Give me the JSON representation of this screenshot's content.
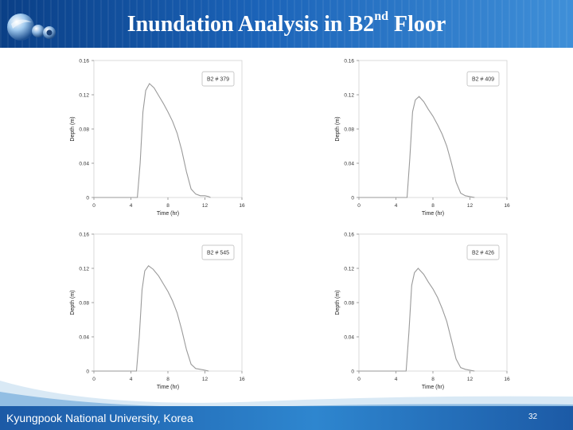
{
  "slide": {
    "title": "Inundation Analysis in B2",
    "title_sup": "nd",
    "title_suffix": " Floor",
    "footer_text": "Kyungpook National University, Korea",
    "page_number": "32",
    "colors": {
      "header": "#1b63b8",
      "footer": "#2e86cf",
      "curve": "#9a9a9a"
    }
  },
  "chart_data": [
    {
      "type": "line",
      "legend": "B2 # 379",
      "xlabel": "Time (hr)",
      "ylabel": "Depth (m)",
      "xlim": [
        0,
        16
      ],
      "ylim": [
        0,
        0.16
      ],
      "xticks": [
        "0",
        "4",
        "8",
        "12",
        "16"
      ],
      "yticks": [
        "0",
        "0.04",
        "0.08",
        "0.12",
        "0.16"
      ],
      "series": [
        {
          "x": [
            0,
            4.7,
            5.0,
            5.3,
            5.6,
            6.0,
            6.5,
            7.0,
            7.5,
            8.0,
            8.5,
            9.0,
            9.5,
            10.0,
            10.5,
            11.0,
            11.5,
            12.0,
            12.4,
            12.6
          ],
          "y": [
            0,
            0,
            0.04,
            0.1,
            0.125,
            0.133,
            0.128,
            0.119,
            0.11,
            0.1,
            0.089,
            0.075,
            0.055,
            0.03,
            0.01,
            0.004,
            0.002,
            0.002,
            0.001,
            0
          ]
        }
      ]
    },
    {
      "type": "line",
      "legend": "B2 # 409",
      "xlabel": "Time (hr)",
      "ylabel": "Depth (m)",
      "xlim": [
        0,
        16
      ],
      "ylim": [
        0,
        0.16
      ],
      "xticks": [
        "0",
        "4",
        "8",
        "12",
        "16"
      ],
      "yticks": [
        "0",
        "0.04",
        "0.08",
        "0.12",
        "0.16"
      ],
      "series": [
        {
          "x": [
            0,
            5.2,
            5.5,
            5.8,
            6.1,
            6.5,
            7.0,
            7.5,
            8.0,
            8.5,
            9.0,
            9.5,
            10.0,
            10.5,
            11.0,
            11.5,
            12.0,
            12.5
          ],
          "y": [
            0,
            0,
            0.045,
            0.1,
            0.114,
            0.118,
            0.112,
            0.103,
            0.095,
            0.085,
            0.074,
            0.06,
            0.04,
            0.018,
            0.005,
            0.002,
            0.001,
            0
          ]
        }
      ]
    },
    {
      "type": "line",
      "legend": "B2 # 545",
      "xlabel": "Time (hr)",
      "ylabel": "Depth (m)",
      "xlim": [
        0,
        16
      ],
      "ylim": [
        0,
        0.16
      ],
      "xticks": [
        "0",
        "4",
        "8",
        "12",
        "16"
      ],
      "yticks": [
        "0",
        "0.04",
        "0.08",
        "0.12",
        "0.16"
      ],
      "series": [
        {
          "x": [
            0,
            4.6,
            4.9,
            5.2,
            5.5,
            5.9,
            6.4,
            7.0,
            7.5,
            8.0,
            8.5,
            9.0,
            9.5,
            10.0,
            10.5,
            11.0,
            11.5,
            12.0,
            12.4
          ],
          "y": [
            0,
            0,
            0.04,
            0.095,
            0.117,
            0.123,
            0.119,
            0.111,
            0.102,
            0.093,
            0.082,
            0.068,
            0.048,
            0.025,
            0.008,
            0.003,
            0.002,
            0.001,
            0
          ]
        }
      ]
    },
    {
      "type": "line",
      "legend": "B2 # 426",
      "xlabel": "Time (hr)",
      "ylabel": "Depth (m)",
      "xlim": [
        0,
        16
      ],
      "ylim": [
        0,
        0.16
      ],
      "xticks": [
        "0",
        "4",
        "8",
        "12",
        "16"
      ],
      "yticks": [
        "0",
        "0.04",
        "0.08",
        "0.12",
        "0.16"
      ],
      "series": [
        {
          "x": [
            0,
            5.1,
            5.4,
            5.7,
            6.0,
            6.4,
            7.0,
            7.5,
            8.0,
            8.5,
            9.0,
            9.5,
            10.0,
            10.5,
            11.0,
            11.5,
            12.0,
            12.5
          ],
          "y": [
            0,
            0,
            0.045,
            0.1,
            0.115,
            0.12,
            0.113,
            0.104,
            0.096,
            0.086,
            0.073,
            0.058,
            0.036,
            0.014,
            0.004,
            0.002,
            0.001,
            0
          ]
        }
      ]
    }
  ]
}
